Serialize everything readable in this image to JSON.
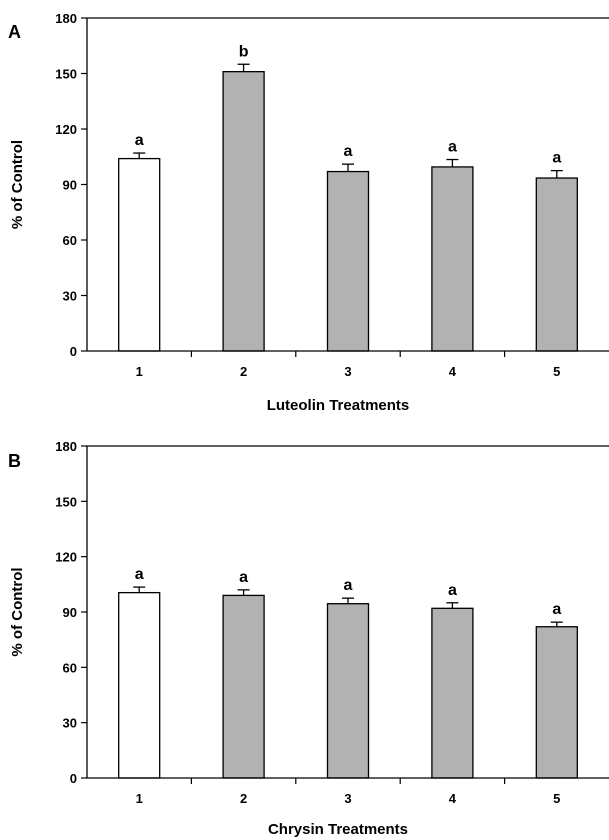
{
  "colors": {
    "control_bar": "#ffffff",
    "treatment_bar": "#b2b2b2",
    "outline": "#000000"
  },
  "chart_data": [
    {
      "panel": "A",
      "type": "bar",
      "categories": [
        "1",
        "2",
        "3",
        "4",
        "5"
      ],
      "values": [
        104,
        151,
        97,
        99.5,
        93.5
      ],
      "errors": [
        3,
        4,
        4,
        4,
        4
      ],
      "significance": [
        "a",
        "b",
        "a",
        "a",
        "a"
      ],
      "bar_fill": [
        "control_bar",
        "treatment_bar",
        "treatment_bar",
        "treatment_bar",
        "treatment_bar"
      ],
      "xlabel": "Luteolin Treatments",
      "ylabel": "% of Control",
      "ylim": [
        0,
        180
      ],
      "yticks": [
        0,
        30,
        60,
        90,
        120,
        150,
        180
      ],
      "grid": false,
      "legend": "none"
    },
    {
      "panel": "B",
      "type": "bar",
      "categories": [
        "1",
        "2",
        "3",
        "4",
        "5"
      ],
      "values": [
        100.5,
        99,
        94.5,
        92,
        82
      ],
      "errors": [
        3,
        3,
        3,
        3,
        2.5
      ],
      "significance": [
        "a",
        "a",
        "a",
        "a",
        "a"
      ],
      "bar_fill": [
        "control_bar",
        "treatment_bar",
        "treatment_bar",
        "treatment_bar",
        "treatment_bar"
      ],
      "xlabel": "Chrysin Treatments",
      "ylabel": "% of Control",
      "ylim": [
        0,
        180
      ],
      "yticks": [
        0,
        30,
        60,
        90,
        120,
        150,
        180
      ],
      "grid": false,
      "legend": "none"
    }
  ]
}
